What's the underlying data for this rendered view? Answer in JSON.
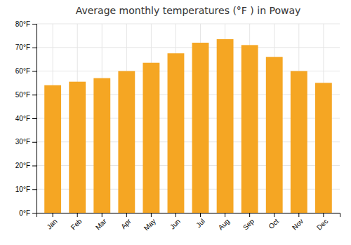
{
  "chart_data": {
    "type": "bar",
    "title": "Average monthly temperatures (°F ) in Poway",
    "categories": [
      "Jan",
      "Feb",
      "Mar",
      "Apr",
      "May",
      "Jun",
      "Jul",
      "Aug",
      "Sep",
      "Oct",
      "Nov",
      "Dec"
    ],
    "values": [
      54,
      55.5,
      57,
      60,
      63.5,
      67.5,
      72,
      73.5,
      71,
      66,
      60,
      55
    ],
    "color": "#F5A623",
    "ylim": [
      0,
      80
    ],
    "yticks": [
      {
        "value": 0,
        "label": "0°F"
      },
      {
        "value": 10,
        "label": "10°F"
      },
      {
        "value": 20,
        "label": "20°F"
      },
      {
        "value": 30,
        "label": "30°F"
      },
      {
        "value": 40,
        "label": "40°F"
      },
      {
        "value": 50,
        "label": "50°F"
      },
      {
        "value": 60,
        "label": "60°F"
      },
      {
        "value": 70,
        "label": "70°F"
      },
      {
        "value": 80,
        "label": "80°F"
      }
    ],
    "grid": true
  }
}
